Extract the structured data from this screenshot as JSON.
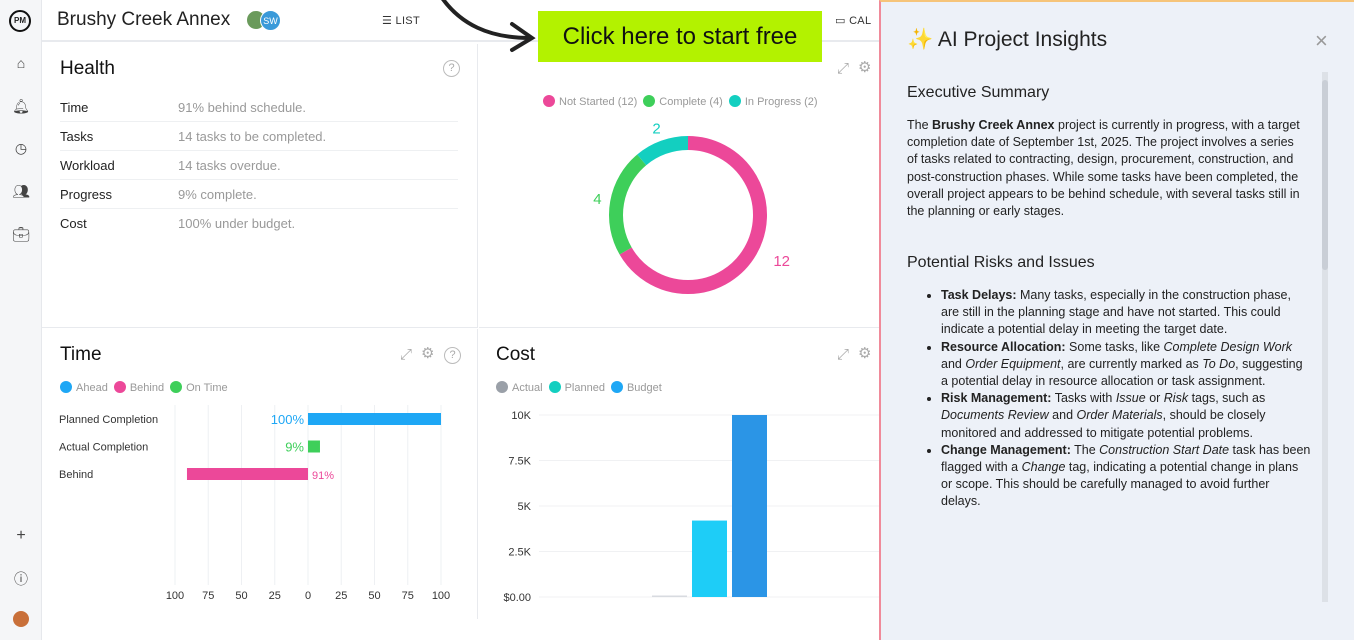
{
  "sidebar": {
    "logo": "PM",
    "icons": [
      "home-icon",
      "notification-bell-icon",
      "clock-icon",
      "people-icon",
      "briefcase-icon",
      "plus-icon",
      "help-icon",
      "user-avatar"
    ]
  },
  "header": {
    "title": "Brushy Creek Annex",
    "avatar_initials": "SW",
    "tabs": [
      {
        "label": "LIST",
        "icon": "list-icon"
      },
      {
        "label": "CAL",
        "icon": "calendar-icon"
      }
    ]
  },
  "cta": {
    "label": "Click here to start free",
    "color": "#b3f200"
  },
  "health": {
    "title": "Health",
    "rows": [
      {
        "label": "Time",
        "value": "91% behind schedule."
      },
      {
        "label": "Tasks",
        "value": "14 tasks to be completed."
      },
      {
        "label": "Workload",
        "value": "14 tasks overdue."
      },
      {
        "label": "Progress",
        "value": "9% complete."
      },
      {
        "label": "Cost",
        "value": "100% under budget."
      }
    ]
  },
  "chart_data": [
    {
      "type": "pie",
      "donut": true,
      "legend": [
        "Not Started (12)",
        "Complete (4)",
        "In Progress (2)"
      ],
      "series": [
        {
          "name": "Not Started",
          "value": 12,
          "label": "12",
          "color": "#ec4899"
        },
        {
          "name": "Complete",
          "value": 4,
          "label": "4",
          "color": "#3ecf5a"
        },
        {
          "name": "In Progress",
          "value": 2,
          "label": "2",
          "color": "#13cfc0"
        }
      ]
    },
    {
      "type": "bar",
      "orientation": "horizontal",
      "title": "Time",
      "legend": [
        {
          "name": "Ahead",
          "color": "#1ea7f5"
        },
        {
          "name": "Behind",
          "color": "#ec4899"
        },
        {
          "name": "On Time",
          "color": "#3ecf5a"
        }
      ],
      "categories": [
        "Planned Completion",
        "Actual Completion",
        "Behind"
      ],
      "values": [
        100,
        9,
        -91
      ],
      "labels": [
        "100%",
        "9%",
        "91%"
      ],
      "colors": [
        "#1ea7f5",
        "#3ecf5a",
        "#ec4899"
      ],
      "xlim": [
        -100,
        100
      ],
      "xticks": [
        "100",
        "75",
        "50",
        "25",
        "0",
        "25",
        "50",
        "75",
        "100"
      ],
      "grid": true
    },
    {
      "type": "bar",
      "title": "Cost",
      "legend": [
        {
          "name": "Actual",
          "color": "#9aa0a8"
        },
        {
          "name": "Planned",
          "color": "#13cfc0"
        },
        {
          "name": "Budget",
          "color": "#1ea7f5"
        }
      ],
      "categories": [
        "Actual",
        "Planned",
        "Budget"
      ],
      "values": [
        0,
        4200,
        10000
      ],
      "colors": [
        "#d8dbe0",
        "#1ecdf7",
        "#2b95e6"
      ],
      "ylim": [
        0,
        10000
      ],
      "yticks": [
        "$0.00",
        "2.5K",
        "5K",
        "7.5K",
        "10K"
      ],
      "grid": true
    }
  ],
  "ai": {
    "title": "AI Project Insights",
    "close": "×",
    "summary_heading": "Executive Summary",
    "summary": [
      {
        "t": "The "
      },
      {
        "t": "Brushy Creek Annex",
        "b": true
      },
      {
        "t": " project is currently in progress, with a target completion date of September 1st, 2025. The project involves a series of tasks related to contracting, design, procurement, construction, and post-construction phases. While some tasks have been completed, the overall project appears to be behind schedule, with several tasks still in the planning or early stages."
      }
    ],
    "risks_heading": "Potential Risks and Issues",
    "risks": [
      [
        {
          "t": "Task Delays:",
          "b": true
        },
        {
          "t": " Many tasks, especially in the construction phase, are still in the planning stage and have not started. This could indicate a potential delay in meeting the target date."
        }
      ],
      [
        {
          "t": "Resource Allocation:",
          "b": true
        },
        {
          "t": " Some tasks, like "
        },
        {
          "t": "Complete Design Work",
          "i": true
        },
        {
          "t": " and "
        },
        {
          "t": "Order Equipment",
          "i": true
        },
        {
          "t": ", are currently marked as "
        },
        {
          "t": "To Do",
          "i": true
        },
        {
          "t": ", suggesting a potential delay in resource allocation or task assignment."
        }
      ],
      [
        {
          "t": "Risk Management:",
          "b": true
        },
        {
          "t": " Tasks with "
        },
        {
          "t": "Issue",
          "i": true
        },
        {
          "t": " or "
        },
        {
          "t": "Risk",
          "i": true
        },
        {
          "t": " tags, such as "
        },
        {
          "t": "Documents Review",
          "i": true
        },
        {
          "t": " and "
        },
        {
          "t": "Order Materials",
          "i": true
        },
        {
          "t": ", should be closely monitored and addressed to mitigate potential problems."
        }
      ],
      [
        {
          "t": "Change Management:",
          "b": true
        },
        {
          "t": " The "
        },
        {
          "t": "Construction Start Date",
          "i": true
        },
        {
          "t": " task has been flagged with a "
        },
        {
          "t": "Change",
          "i": true
        },
        {
          "t": " tag, indicating a potential change in plans or scope. This should be carefully managed to avoid further delays."
        }
      ]
    ]
  }
}
